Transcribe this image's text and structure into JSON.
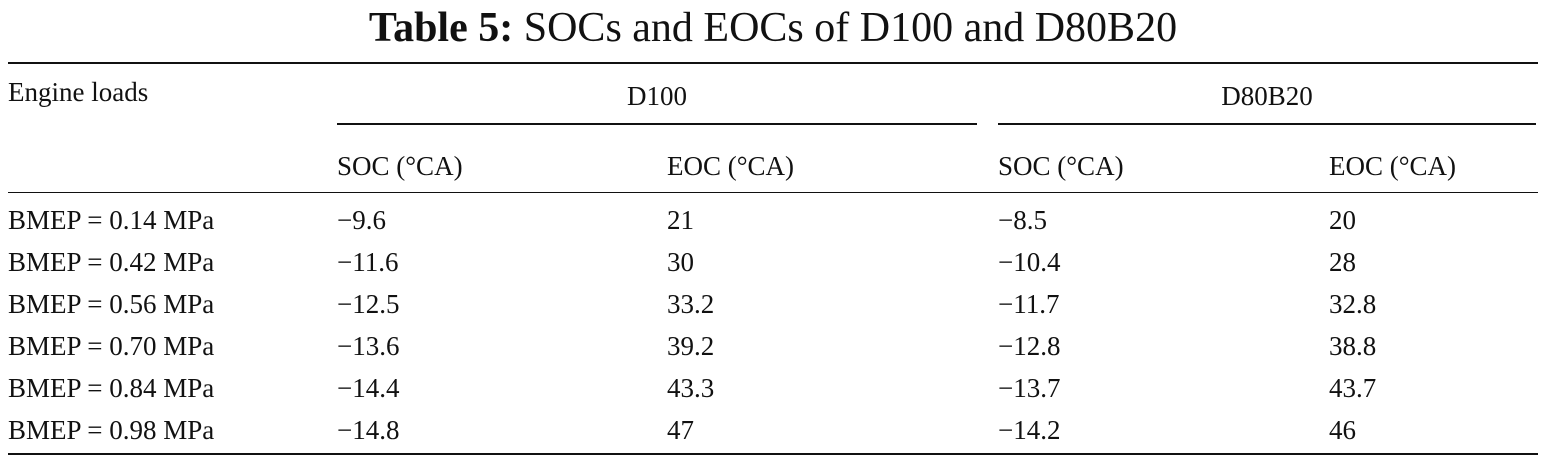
{
  "caption": {
    "label": "Table 5:",
    "title": "SOCs and EOCs of D100 and D80B20"
  },
  "table": {
    "row_header": "Engine loads",
    "groups": [
      "D100",
      "D80B20"
    ],
    "columns": [
      "SOC (°CA)",
      "EOC (°CA)",
      "SOC (°CA)",
      "EOC (°CA)"
    ],
    "rows": [
      {
        "load": "BMEP = 0.14 MPa",
        "values": [
          "−9.6",
          "21",
          "−8.5",
          "20"
        ]
      },
      {
        "load": "BMEP = 0.42 MPa",
        "values": [
          "−11.6",
          "30",
          "−10.4",
          "28"
        ]
      },
      {
        "load": "BMEP = 0.56 MPa",
        "values": [
          "−12.5",
          "33.2",
          "−11.7",
          "32.8"
        ]
      },
      {
        "load": "BMEP = 0.70 MPa",
        "values": [
          "−13.6",
          "39.2",
          "−12.8",
          "38.8"
        ]
      },
      {
        "load": "BMEP = 0.84 MPa",
        "values": [
          "−14.4",
          "43.3",
          "−13.7",
          "43.7"
        ]
      },
      {
        "load": "BMEP = 0.98 MPa",
        "values": [
          "−14.8",
          "47",
          "−14.2",
          "46"
        ]
      }
    ]
  }
}
